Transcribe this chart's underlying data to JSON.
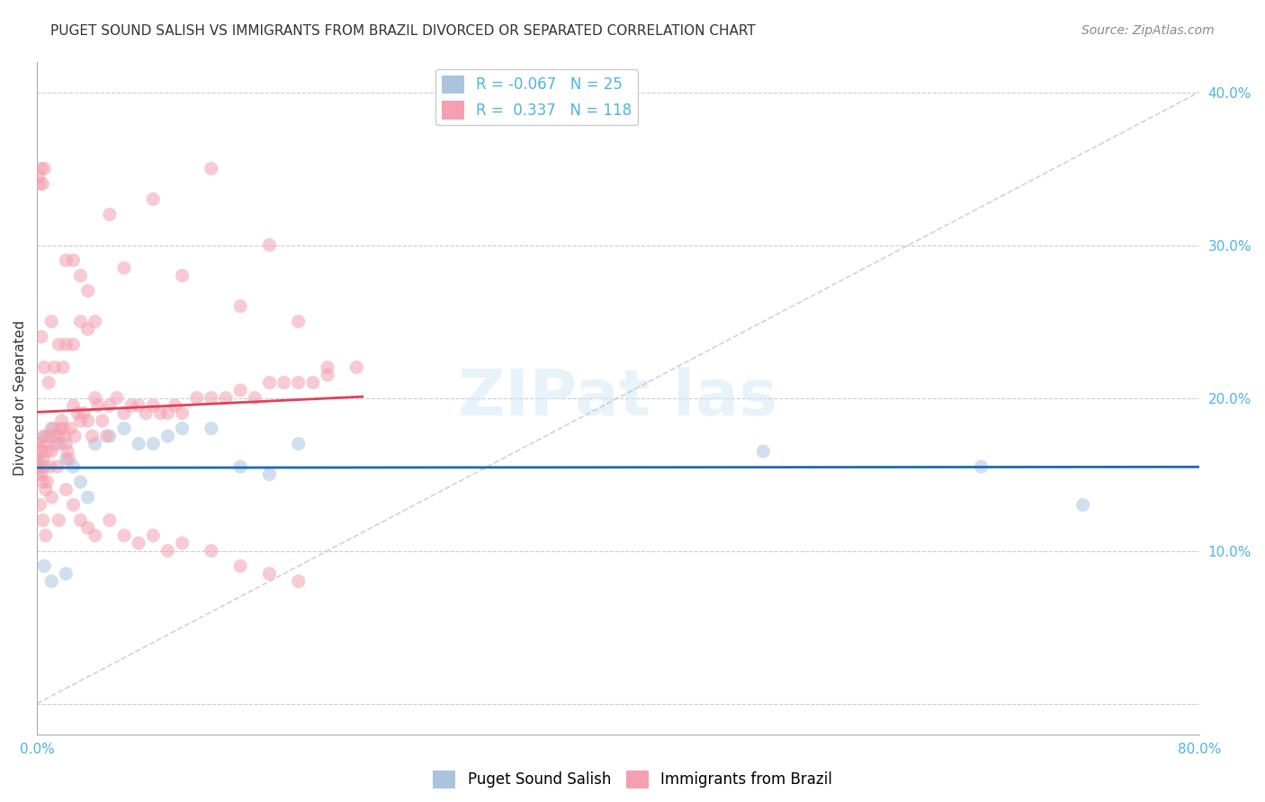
{
  "title": "PUGET SOUND SALISH VS IMMIGRANTS FROM BRAZIL DIVORCED OR SEPARATED CORRELATION CHART",
  "source": "Source: ZipAtlas.com",
  "ylabel": "Divorced or Separated",
  "xlabel": "",
  "xlim": [
    0.0,
    0.8
  ],
  "ylim": [
    -0.02,
    0.42
  ],
  "xticks": [
    0.0,
    0.1,
    0.2,
    0.3,
    0.4,
    0.5,
    0.6,
    0.7,
    0.8
  ],
  "xticklabels": [
    "0.0%",
    "",
    "",
    "",
    "",
    "",
    "",
    "",
    "80.0%"
  ],
  "yticks_left": [],
  "yticks_right": [
    0.0,
    0.1,
    0.2,
    0.3,
    0.4
  ],
  "yticklabels_right": [
    "",
    "10.0%",
    "20.0%",
    "30.0%",
    "40.0%"
  ],
  "grid_color": "#cccccc",
  "background_color": "#ffffff",
  "series1_color": "#aac4e0",
  "series2_color": "#f4a0b0",
  "series1_line_color": "#1a6bb5",
  "series2_line_color": "#e0405a",
  "diagonal_line_color": "#c0c0c0",
  "R1": -0.067,
  "N1": 25,
  "R2": 0.337,
  "N2": 118,
  "legend_label1": "Puget Sound Salish",
  "legend_label2": "Immigrants from Brazil",
  "marker_size": 120,
  "marker_alpha": 0.55,
  "series1_x": [
    0.0,
    0.005,
    0.01,
    0.015,
    0.02,
    0.025,
    0.03,
    0.035,
    0.04,
    0.05,
    0.06,
    0.07,
    0.08,
    0.09,
    0.1,
    0.12,
    0.14,
    0.16,
    0.18,
    0.5,
    0.65,
    0.72,
    0.005,
    0.01,
    0.02
  ],
  "series1_y": [
    0.16,
    0.175,
    0.18,
    0.17,
    0.16,
    0.155,
    0.145,
    0.135,
    0.17,
    0.175,
    0.18,
    0.17,
    0.17,
    0.175,
    0.18,
    0.18,
    0.155,
    0.15,
    0.17,
    0.165,
    0.155,
    0.13,
    0.09,
    0.08,
    0.085
  ],
  "series2_x": [
    0.0,
    0.0,
    0.0,
    0.001,
    0.001,
    0.002,
    0.002,
    0.003,
    0.003,
    0.004,
    0.004,
    0.005,
    0.005,
    0.006,
    0.006,
    0.007,
    0.007,
    0.008,
    0.009,
    0.01,
    0.011,
    0.012,
    0.013,
    0.014,
    0.015,
    0.016,
    0.017,
    0.018,
    0.019,
    0.02,
    0.021,
    0.022,
    0.023,
    0.025,
    0.026,
    0.028,
    0.03,
    0.032,
    0.035,
    0.038,
    0.04,
    0.042,
    0.045,
    0.048,
    0.05,
    0.055,
    0.06,
    0.065,
    0.07,
    0.075,
    0.08,
    0.085,
    0.09,
    0.095,
    0.1,
    0.11,
    0.12,
    0.13,
    0.14,
    0.15,
    0.16,
    0.17,
    0.18,
    0.19,
    0.2,
    0.22,
    0.003,
    0.005,
    0.008,
    0.01,
    0.012,
    0.015,
    0.018,
    0.02,
    0.025,
    0.03,
    0.035,
    0.04,
    0.002,
    0.004,
    0.006,
    0.01,
    0.015,
    0.02,
    0.025,
    0.03,
    0.035,
    0.04,
    0.05,
    0.06,
    0.07,
    0.08,
    0.09,
    0.1,
    0.12,
    0.14,
    0.16,
    0.18,
    0.02,
    0.025,
    0.03,
    0.035,
    0.05,
    0.06,
    0.08,
    0.1,
    0.12,
    0.14,
    0.16,
    0.18,
    0.2,
    0.001,
    0.002,
    0.003,
    0.004,
    0.005
  ],
  "series2_y": [
    0.17,
    0.16,
    0.155,
    0.165,
    0.15,
    0.17,
    0.155,
    0.165,
    0.15,
    0.16,
    0.145,
    0.175,
    0.155,
    0.17,
    0.14,
    0.165,
    0.145,
    0.175,
    0.155,
    0.165,
    0.18,
    0.175,
    0.17,
    0.155,
    0.175,
    0.18,
    0.185,
    0.18,
    0.175,
    0.17,
    0.165,
    0.16,
    0.18,
    0.195,
    0.175,
    0.19,
    0.185,
    0.19,
    0.185,
    0.175,
    0.2,
    0.195,
    0.185,
    0.175,
    0.195,
    0.2,
    0.19,
    0.195,
    0.195,
    0.19,
    0.195,
    0.19,
    0.19,
    0.195,
    0.19,
    0.2,
    0.2,
    0.2,
    0.205,
    0.2,
    0.21,
    0.21,
    0.21,
    0.21,
    0.215,
    0.22,
    0.24,
    0.22,
    0.21,
    0.25,
    0.22,
    0.235,
    0.22,
    0.235,
    0.235,
    0.25,
    0.245,
    0.25,
    0.13,
    0.12,
    0.11,
    0.135,
    0.12,
    0.14,
    0.13,
    0.12,
    0.115,
    0.11,
    0.12,
    0.11,
    0.105,
    0.11,
    0.1,
    0.105,
    0.1,
    0.09,
    0.085,
    0.08,
    0.29,
    0.29,
    0.28,
    0.27,
    0.32,
    0.285,
    0.33,
    0.28,
    0.35,
    0.26,
    0.3,
    0.25,
    0.22,
    0.345,
    0.34,
    0.35,
    0.34,
    0.35
  ],
  "title_fontsize": 11,
  "axis_label_fontsize": 11,
  "tick_fontsize": 11,
  "legend_fontsize": 12,
  "source_fontsize": 10
}
